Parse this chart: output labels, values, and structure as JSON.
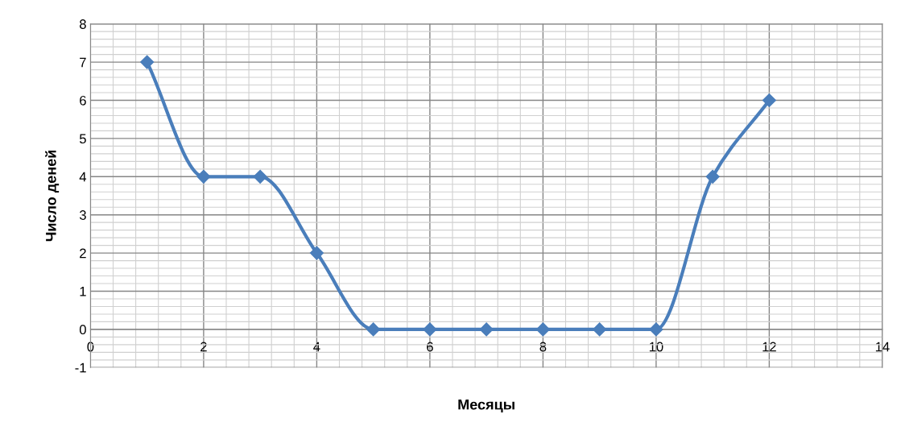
{
  "chart_data": {
    "type": "line",
    "xlabel": "Месяцы",
    "ylabel": "Число деней",
    "x": [
      1,
      2,
      3,
      4,
      5,
      6,
      7,
      8,
      9,
      10,
      11,
      12
    ],
    "series": [
      {
        "color": "#4a7ebb",
        "values": [
          7,
          4,
          4,
          2,
          0,
          0,
          0,
          0,
          0,
          0,
          4,
          6
        ]
      }
    ],
    "xlim": [
      0,
      14
    ],
    "xticks": [
      0,
      2,
      4,
      6,
      8,
      10,
      12,
      14
    ],
    "ylim": [
      -1,
      8
    ],
    "yticks": [
      -1,
      0,
      1,
      2,
      3,
      4,
      5,
      6,
      7,
      8
    ],
    "grid": true,
    "marker": "diamond",
    "line_style": "solid",
    "legend": false
  }
}
